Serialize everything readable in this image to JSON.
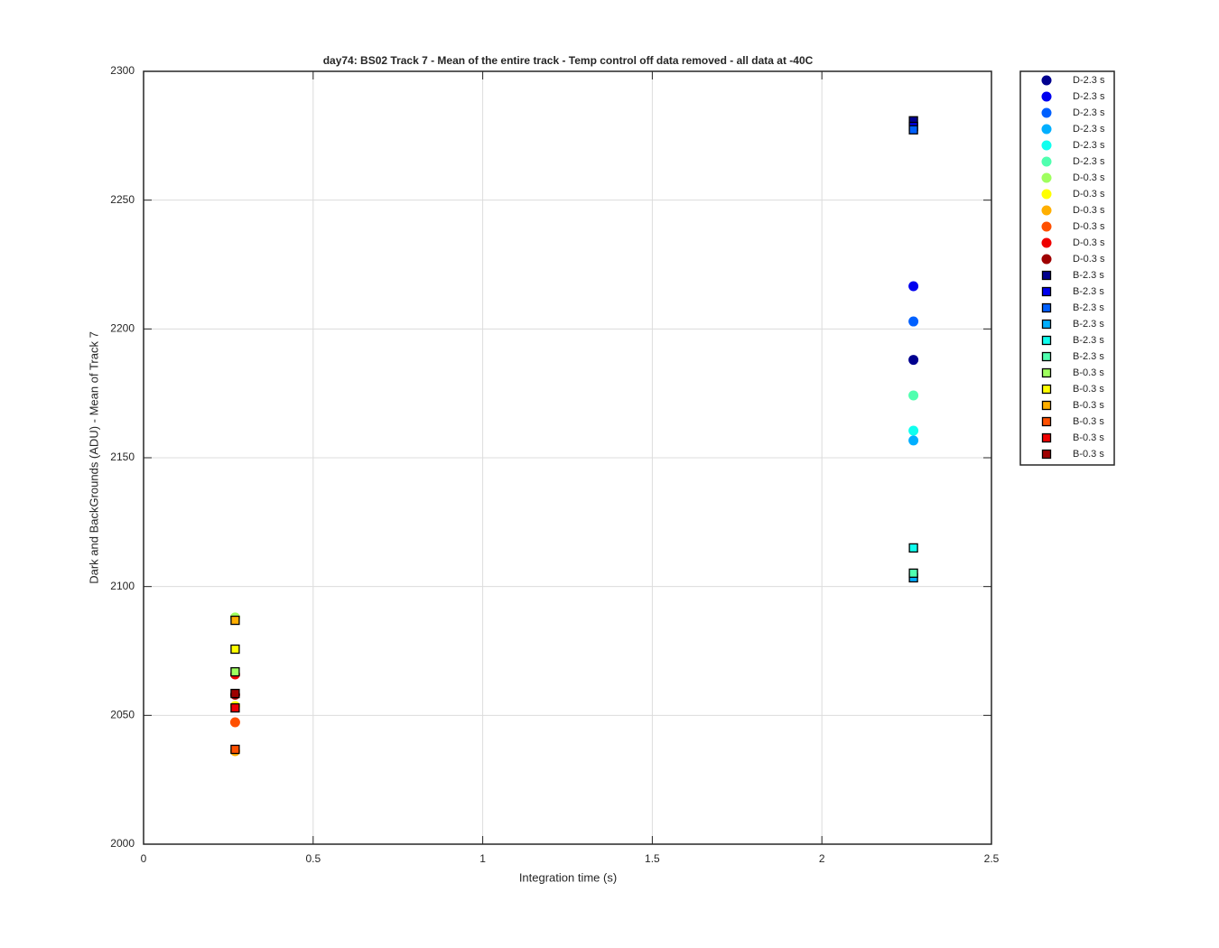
{
  "chart_data": {
    "type": "scatter",
    "title": "day74: BS02  Track 7 - Mean of the entire track - Temp control off data removed - all data at -40C",
    "x_label": "Integration time (s)",
    "y_label": "Dark and BackGrounds (ADU) - Mean of Track 7",
    "xlim": [
      0,
      2.5
    ],
    "xticks": [
      0,
      0.5,
      1,
      1.5,
      2,
      2.5
    ],
    "ylim": [
      2000,
      2300
    ],
    "yticks": [
      2000,
      2050,
      2100,
      2150,
      2200,
      2250,
      2300
    ],
    "grid": true,
    "legend": "outside-right",
    "series": [
      {
        "name": "D-2.3 s",
        "color": "#00008f",
        "marker": "o",
        "x": [
          2.27
        ],
        "values": [
          2188
        ]
      },
      {
        "name": "D-2.3 s",
        "color": "#0000ef",
        "marker": "o",
        "x": [
          2.27
        ],
        "values": [
          2216.6
        ]
      },
      {
        "name": "D-2.3 s",
        "color": "#0060ff",
        "marker": "o",
        "x": [
          2.27
        ],
        "values": [
          2202.9
        ]
      },
      {
        "name": "D-2.3 s",
        "color": "#00afff",
        "marker": "o",
        "x": [
          2.27
        ],
        "values": [
          2156.7
        ]
      },
      {
        "name": "D-2.3 s",
        "color": "#10ffef",
        "marker": "o",
        "x": [
          2.27
        ],
        "values": [
          2160.5
        ]
      },
      {
        "name": "D-2.3 s",
        "color": "#50ffaf",
        "marker": "o",
        "x": [
          2.27
        ],
        "values": [
          2174.2
        ]
      },
      {
        "name": "D-0.3 s",
        "color": "#9fff5f",
        "marker": "o",
        "x": [
          0.27
        ],
        "values": [
          2088
        ]
      },
      {
        "name": "D-0.3 s",
        "color": "#ffff00",
        "marker": "o",
        "x": [
          0.27
        ],
        "values": [
          2053.6
        ]
      },
      {
        "name": "D-0.3 s",
        "color": "#ffaf00",
        "marker": "o",
        "x": [
          0.27
        ],
        "values": [
          2036.1
        ]
      },
      {
        "name": "D-0.3 s",
        "color": "#ff5000",
        "marker": "o",
        "x": [
          0.27
        ],
        "values": [
          2047.3
        ]
      },
      {
        "name": "D-0.3 s",
        "color": "#ef0000",
        "marker": "o",
        "x": [
          0.27
        ],
        "values": [
          2065.9
        ]
      },
      {
        "name": "D-0.3 s",
        "color": "#9f0000",
        "marker": "o",
        "x": [
          0.27
        ],
        "values": [
          2058
        ]
      },
      {
        "name": "B-2.3 s",
        "color": "#00008f",
        "marker": "s",
        "x": [
          2.27
        ],
        "values": [
          2280.8
        ]
      },
      {
        "name": "B-2.3 s",
        "color": "#0000ef",
        "marker": "s",
        "x": [
          2.27
        ],
        "values": [
          2278.6
        ]
      },
      {
        "name": "B-2.3 s",
        "color": "#0060ff",
        "marker": "s",
        "x": [
          2.27
        ],
        "values": [
          2277.3
        ]
      },
      {
        "name": "B-2.3 s",
        "color": "#00afff",
        "marker": "s",
        "x": [
          2.27
        ],
        "values": [
          2103.4
        ]
      },
      {
        "name": "B-2.3 s",
        "color": "#10ffef",
        "marker": "s",
        "x": [
          2.27
        ],
        "values": [
          2115
        ]
      },
      {
        "name": "B-2.3 s",
        "color": "#50ffaf",
        "marker": "s",
        "x": [
          2.27
        ],
        "values": [
          2105.2
        ]
      },
      {
        "name": "B-0.3 s",
        "color": "#9fff5f",
        "marker": "s",
        "x": [
          0.27
        ],
        "values": [
          2066.9
        ]
      },
      {
        "name": "B-0.3 s",
        "color": "#ffff00",
        "marker": "s",
        "x": [
          0.27
        ],
        "values": [
          2075.7
        ]
      },
      {
        "name": "B-0.3 s",
        "color": "#ffaf00",
        "marker": "s",
        "x": [
          0.27
        ],
        "values": [
          2086.9
        ]
      },
      {
        "name": "B-0.3 s",
        "color": "#ff5000",
        "marker": "s",
        "x": [
          0.27
        ],
        "values": [
          2036.8
        ]
      },
      {
        "name": "B-0.3 s",
        "color": "#ef0000",
        "marker": "s",
        "x": [
          0.27
        ],
        "values": [
          2052.9
        ]
      },
      {
        "name": "B-0.3 s",
        "color": "#9f0000",
        "marker": "s",
        "x": [
          0.27
        ],
        "values": [
          2058.5
        ]
      }
    ]
  }
}
